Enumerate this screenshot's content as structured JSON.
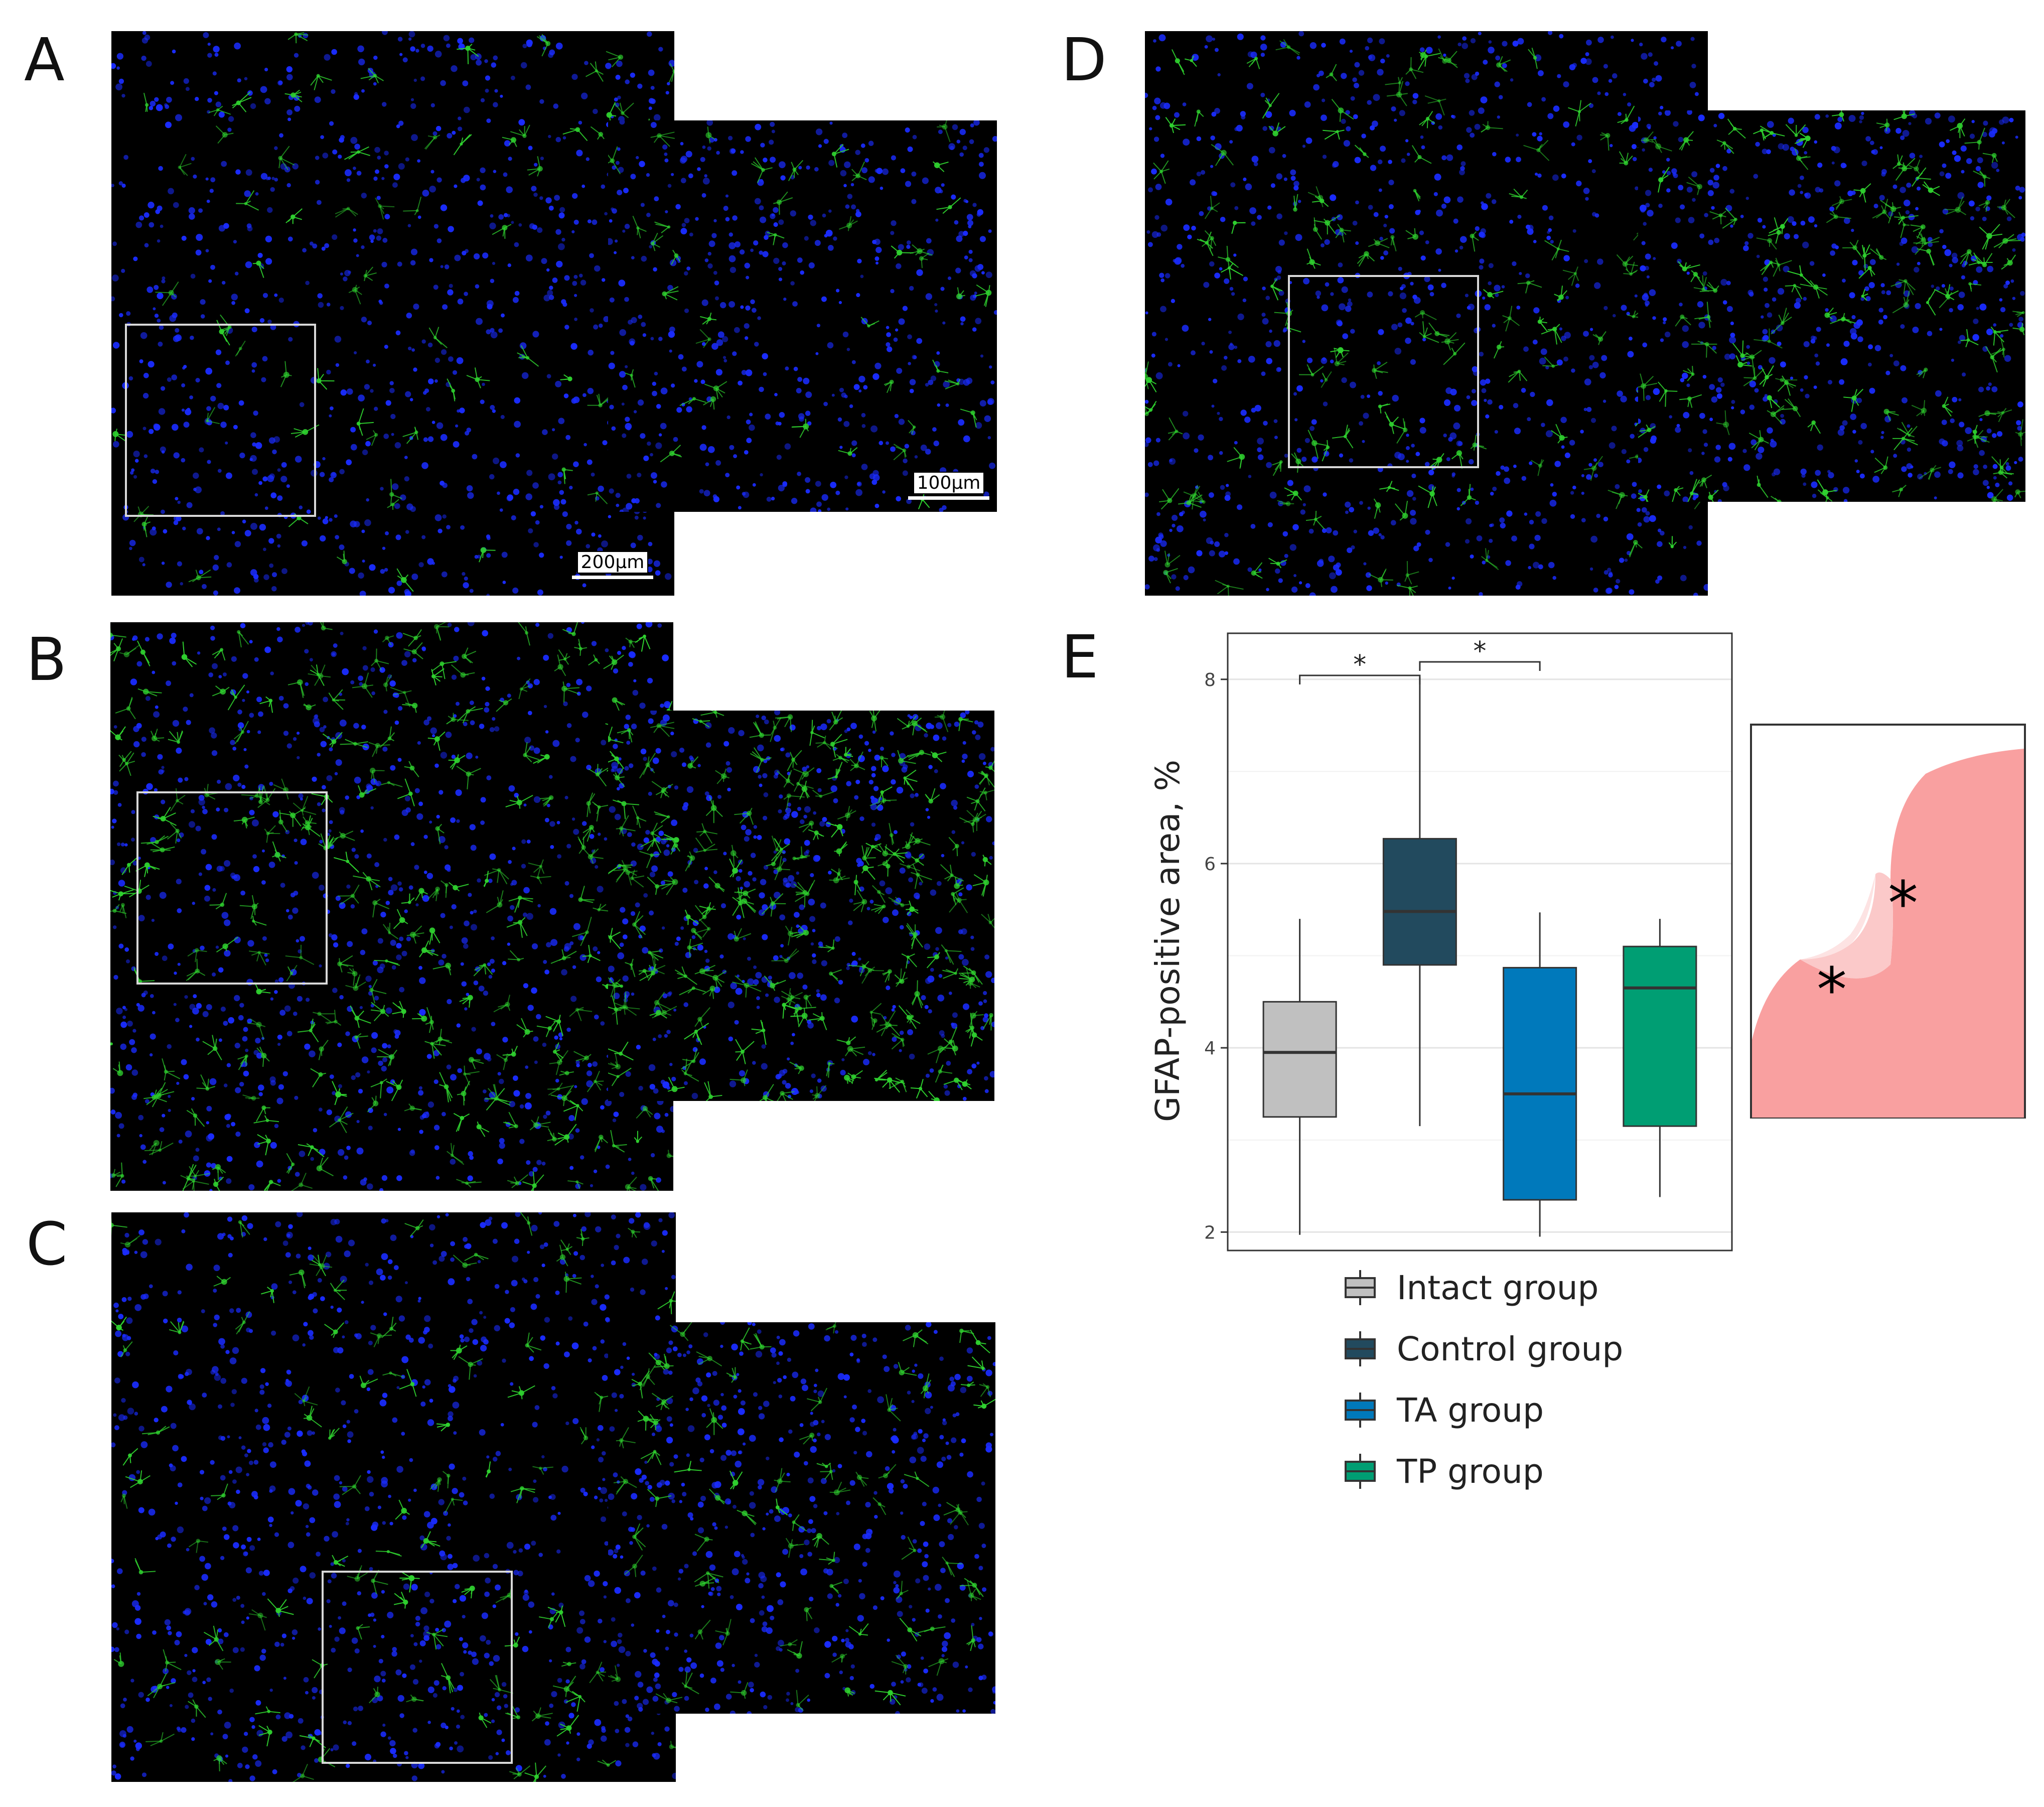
{
  "panels": {
    "A": {
      "letter": "A",
      "scale_main": "200μm",
      "scale_inset": "100μm"
    },
    "B": {
      "letter": "B"
    },
    "C": {
      "letter": "C"
    },
    "D": {
      "letter": "D"
    },
    "E": {
      "letter": "E"
    }
  },
  "colors": {
    "nuclei": "#1a2cff",
    "astrocytes": "#2fd12f",
    "background": "#000000",
    "schematic_tissue": "#f9a0a0",
    "schematic_lesion": "#fbc9c9",
    "schematic_core": "#fde3e3"
  },
  "chart_data": {
    "type": "box",
    "ylabel": "GFAP-positive area, %",
    "xlabel": "",
    "ylim": [
      1.8,
      8.5
    ],
    "yticks": [
      2,
      4,
      6,
      8
    ],
    "grid": true,
    "legend_position": "bottom",
    "series": [
      {
        "name": "Intact group",
        "color": "#c0c0c0",
        "min": 1.97,
        "q1": 3.25,
        "median": 3.95,
        "q3": 4.5,
        "max": 5.4
      },
      {
        "name": "Control group",
        "color": "#224a5e",
        "min": 3.15,
        "q1": 4.9,
        "median": 5.48,
        "q3": 6.27,
        "max": 8.02
      },
      {
        "name": "TA group",
        "color": "#0079bb",
        "min": 1.95,
        "q1": 2.35,
        "median": 3.5,
        "q3": 4.87,
        "max": 5.47
      },
      {
        "name": "TP group",
        "color": "#009e73",
        "min": 2.38,
        "q1": 3.15,
        "median": 4.65,
        "q3": 5.1,
        "max": 5.4
      }
    ],
    "annotations": [
      {
        "from": "Intact group",
        "to": "Control group",
        "label": "*"
      },
      {
        "from": "Control group",
        "to": "TA group",
        "label": "*"
      }
    ]
  },
  "schematic": {
    "marker_1": "*",
    "marker_2": "*"
  }
}
